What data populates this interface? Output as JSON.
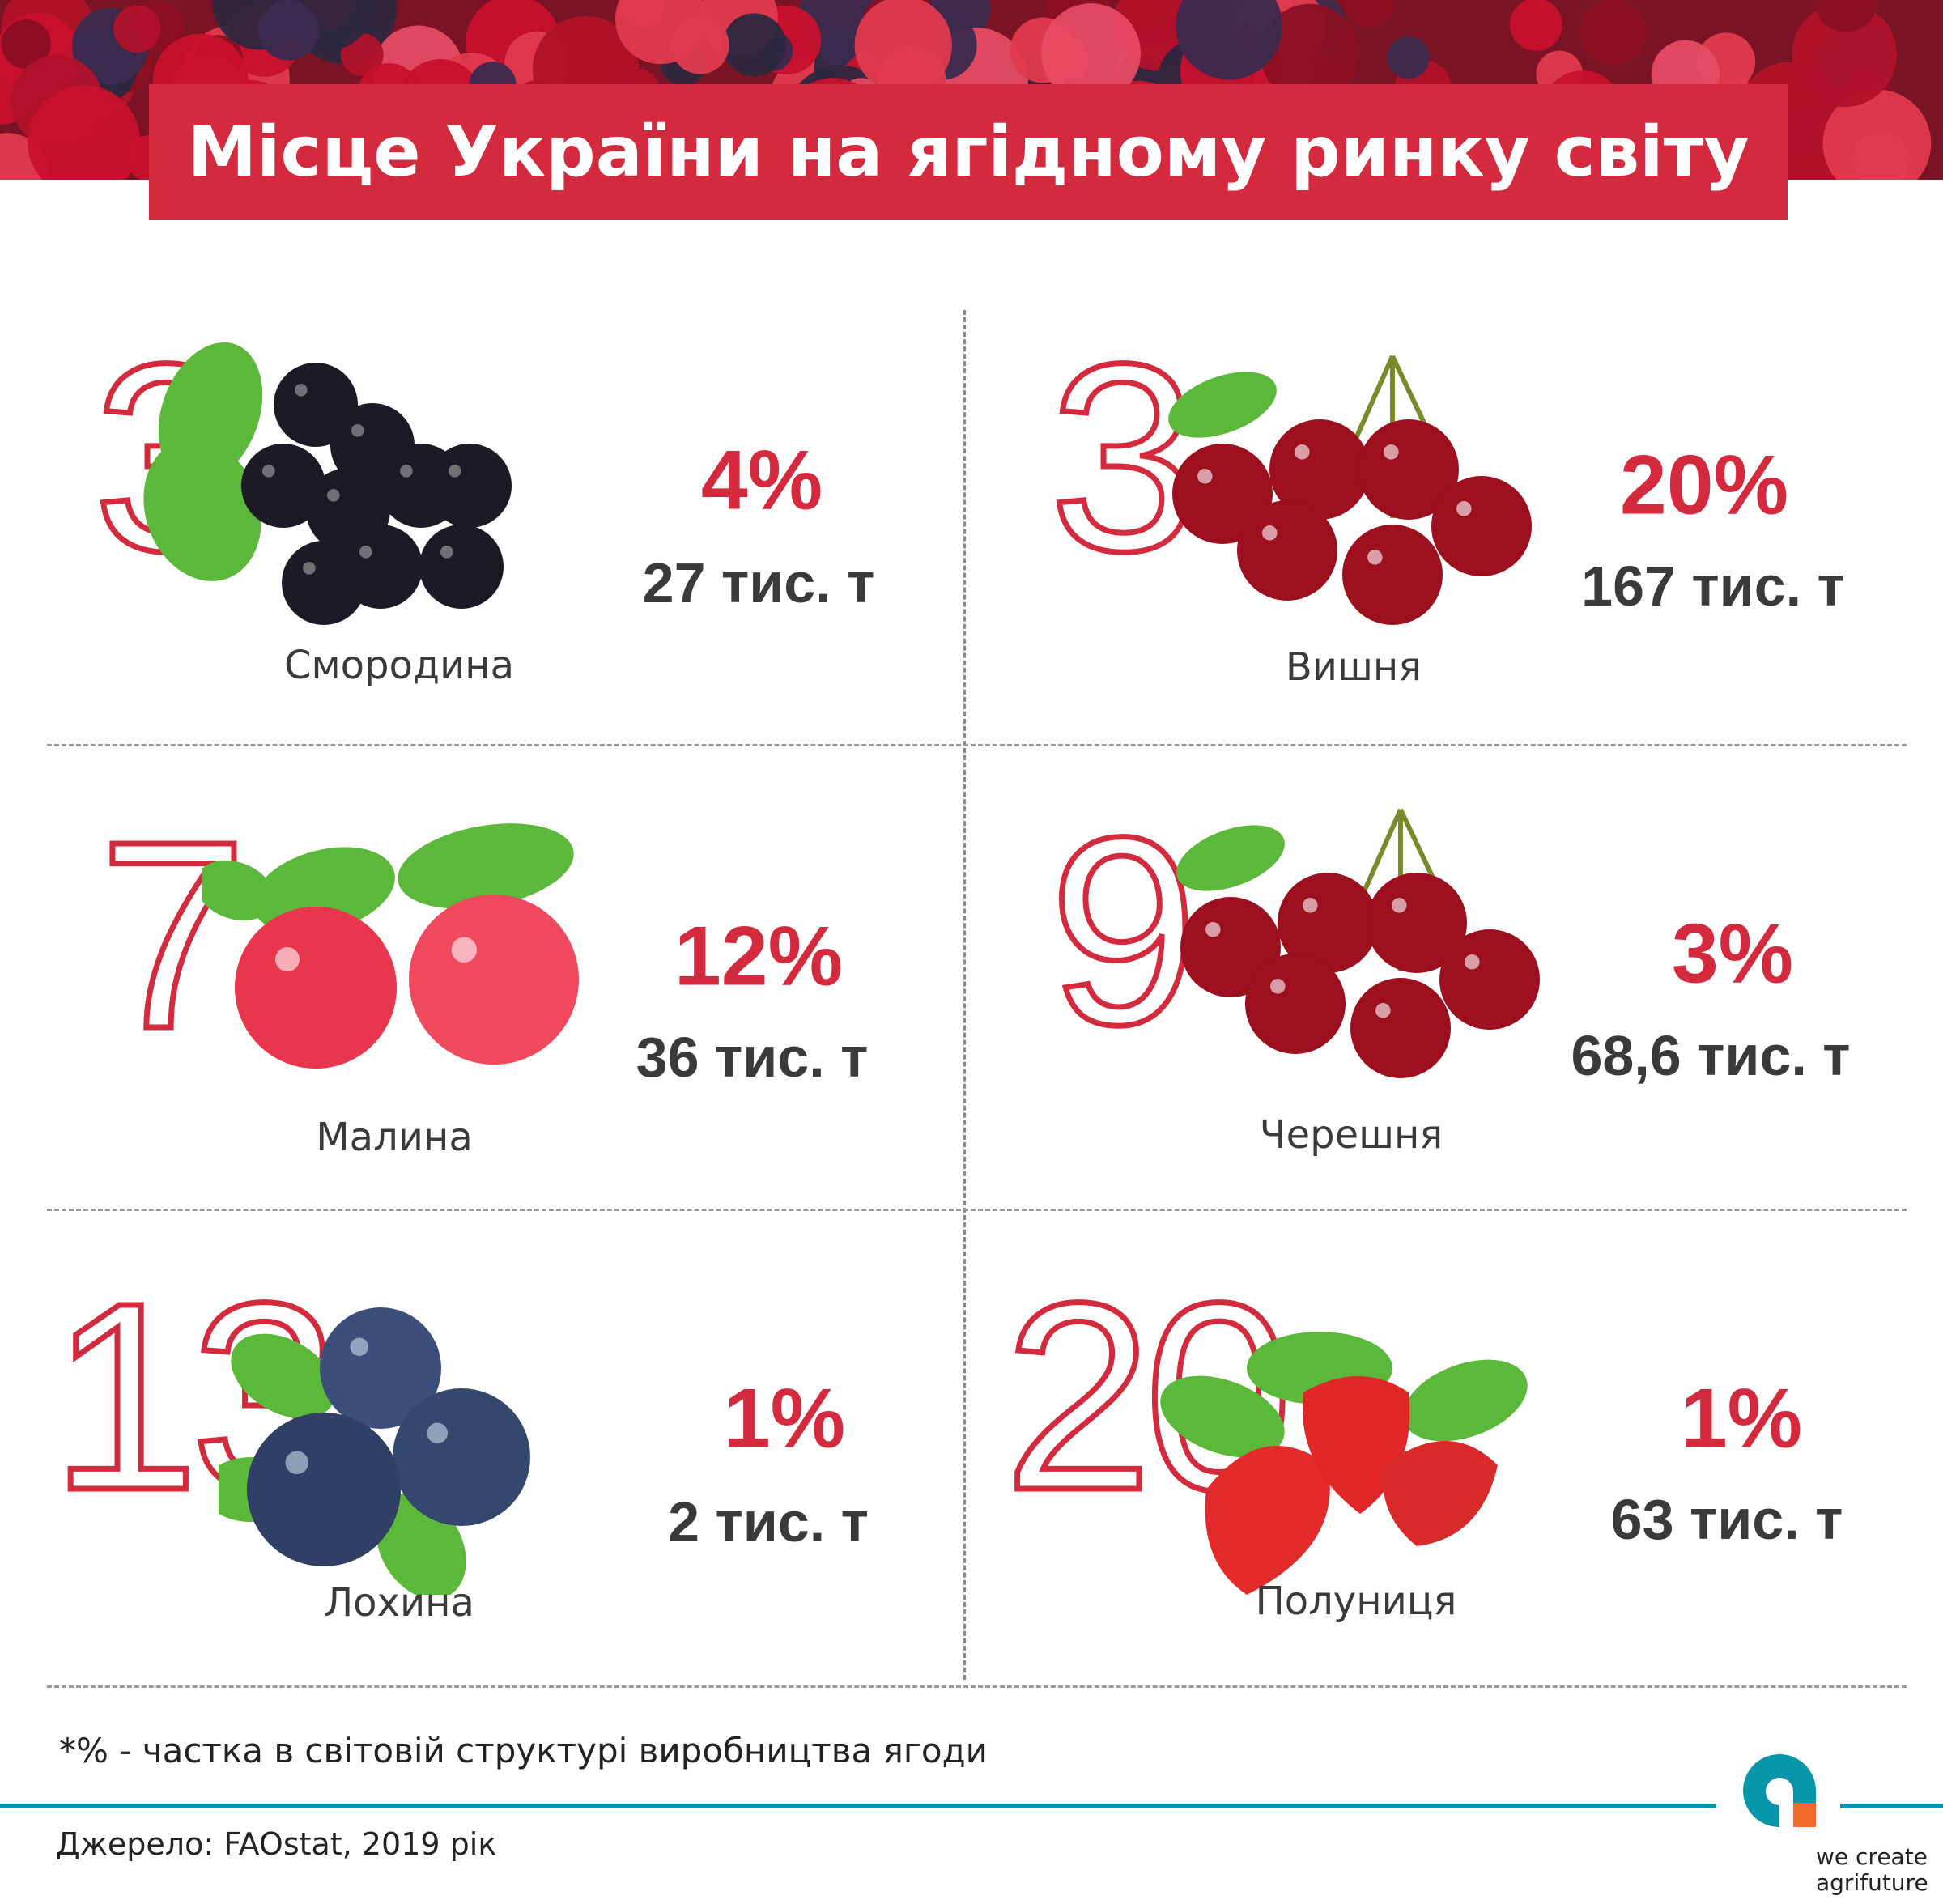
{
  "header": {
    "title": "Місце України на ягідному ринку світу"
  },
  "colors": {
    "accent": "#d32a3e",
    "text": "#3a3a3a",
    "brand_teal": "#0696a8",
    "brand_orange": "#f26a2e"
  },
  "items": [
    {
      "rank": "3",
      "percent": "4%",
      "volume": "27 тис. т",
      "name": "Смородина",
      "fruit": "blackcurrant-image"
    },
    {
      "rank": "3",
      "percent": "20%",
      "volume": "167 тис. т",
      "name": "Вишня",
      "fruit": "sour-cherry-image"
    },
    {
      "rank": "7",
      "percent": "12%",
      "volume": "36 тис. т",
      "name": "Малина",
      "fruit": "raspberry-image"
    },
    {
      "rank": "9",
      "percent": "3%",
      "volume": "68,6 тис. т",
      "name": "Черешня",
      "fruit": "sweet-cherry-image"
    },
    {
      "rank": "13",
      "percent": "1%",
      "volume": "2 тис. т",
      "name": "Лохина",
      "fruit": "blueberry-image"
    },
    {
      "rank": "20",
      "percent": "1%",
      "volume": "63 тис. т",
      "name": "Полуниця",
      "fruit": "strawberry-image"
    }
  ],
  "footnote": "*% - частка в світовій структурі виробництва ягоди",
  "source": "Джерело:  FAOstat, 2019 рік",
  "logo": {
    "line1": "we create",
    "line2": "agrifuture"
  }
}
